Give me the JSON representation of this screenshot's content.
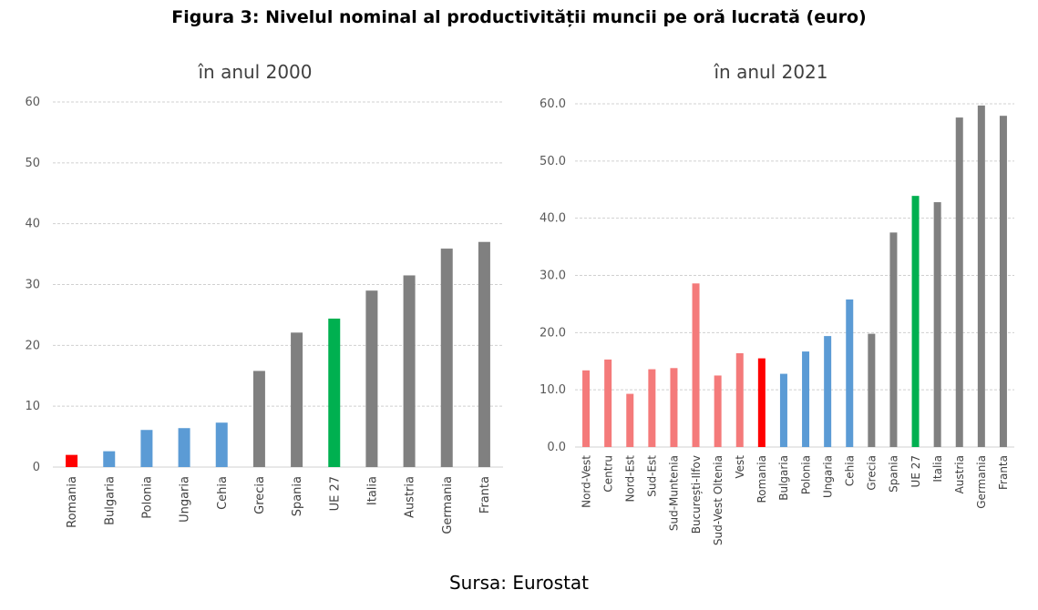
{
  "title": "Figura 3: Nivelul nominal al productivității muncii pe oră lucrată (euro)",
  "source": "Sursa: Eurostat",
  "colors": {
    "red": "#ff0000",
    "pink": "#f47a7a",
    "blue": "#5b9bd5",
    "gray": "#808080",
    "green": "#00b050"
  },
  "chart_data": [
    {
      "type": "bar",
      "title": "în anul 2000",
      "categories": [
        "Romania",
        "Bulgaria",
        "Polonia",
        "Ungaria",
        "Cehia",
        "Grecia",
        "Spania",
        "UE 27",
        "Italia",
        "Austria",
        "Germania",
        "Franta"
      ],
      "values": [
        2.0,
        2.6,
        6.1,
        6.4,
        7.3,
        15.8,
        22.1,
        24.4,
        29.0,
        31.5,
        35.9,
        37.0
      ],
      "bar_colors": [
        "red",
        "blue",
        "blue",
        "blue",
        "blue",
        "gray",
        "gray",
        "green",
        "gray",
        "gray",
        "gray",
        "gray"
      ],
      "ylim": [
        0,
        60
      ],
      "yticks": [
        0,
        10,
        20,
        30,
        40,
        50,
        60
      ],
      "ytick_labels": [
        "0",
        "10",
        "20",
        "30",
        "40",
        "50",
        "60"
      ],
      "grid": true,
      "xlabel": "",
      "ylabel": ""
    },
    {
      "type": "bar",
      "title": "în anul 2021",
      "categories": [
        "Nord-Vest",
        "Centru",
        "Nord-Est",
        "Sud-Est",
        "Sud-Muntenia",
        "București-Ilfov",
        "Sud-Vest Oltenia",
        "Vest",
        "Romania",
        "Bulgaria",
        "Polonia",
        "Ungaria",
        "Cehia",
        "Grecia",
        "Spania",
        "UE 27",
        "Italia",
        "Austria",
        "Germania",
        "Franta"
      ],
      "values": [
        13.4,
        15.3,
        9.3,
        13.6,
        13.8,
        28.6,
        12.5,
        16.4,
        15.5,
        12.8,
        16.7,
        19.4,
        25.8,
        19.8,
        37.5,
        43.9,
        42.8,
        57.6,
        59.7,
        57.9
      ],
      "bar_colors": [
        "pink",
        "pink",
        "pink",
        "pink",
        "pink",
        "pink",
        "pink",
        "pink",
        "red",
        "blue",
        "blue",
        "blue",
        "blue",
        "gray",
        "gray",
        "green",
        "gray",
        "gray",
        "gray",
        "gray"
      ],
      "ylim": [
        0,
        60
      ],
      "yticks": [
        0,
        10,
        20,
        30,
        40,
        50,
        60
      ],
      "ytick_labels": [
        "0.0",
        "10.0",
        "20.0",
        "30.0",
        "40.0",
        "50.0",
        "60.0"
      ],
      "grid": true,
      "xlabel": "",
      "ylabel": ""
    }
  ]
}
